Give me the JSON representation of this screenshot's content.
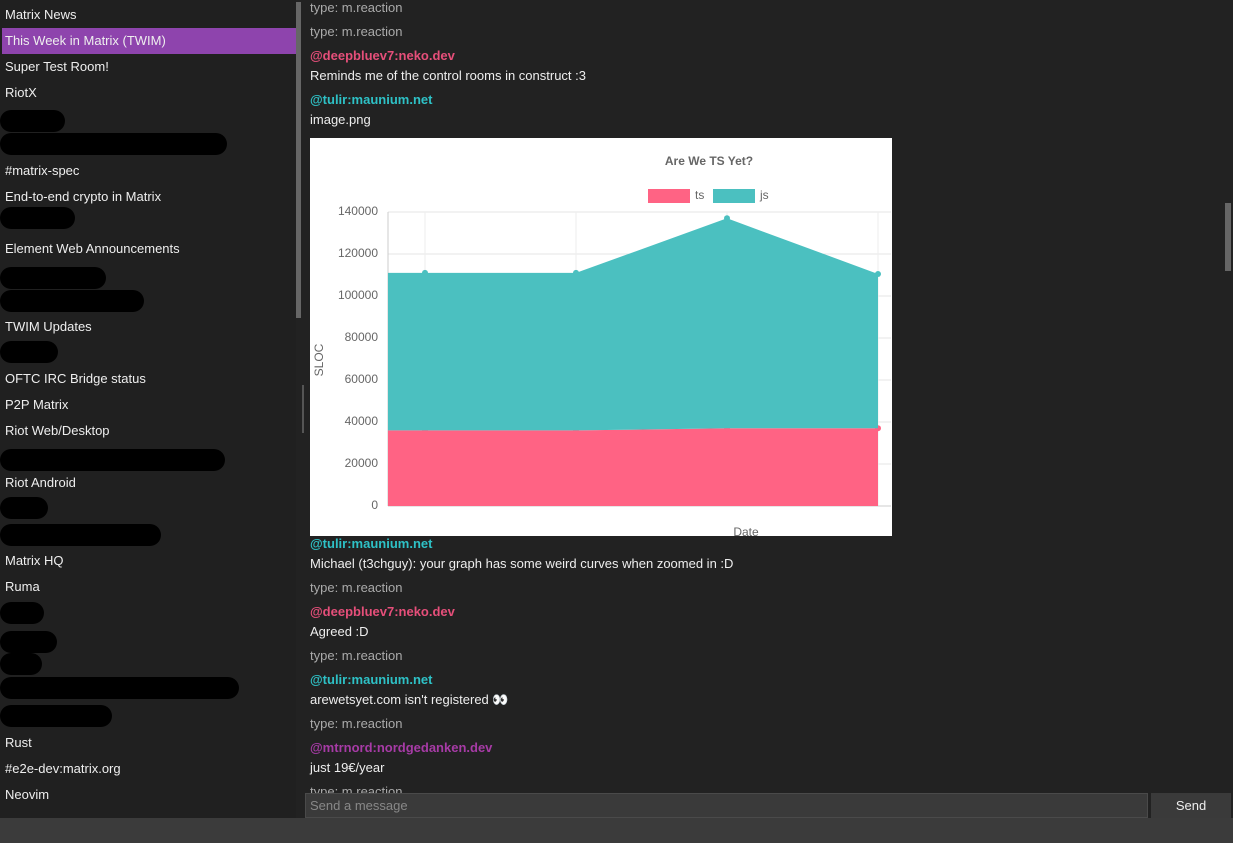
{
  "rooms": [
    "Matrix News",
    "This Week in Matrix (TWIM)",
    "Super Test Room!",
    "RiotX",
    "#matrix-spec",
    "End-to-end crypto in Matrix",
    "Element Web Announcements",
    "TWIM Updates",
    "OFTC IRC Bridge status",
    "P2P Matrix",
    "Riot Web/Desktop",
    "Riot Android",
    "Matrix HQ",
    "Ruma",
    "Rust",
    "#e2e-dev:matrix.org",
    "Neovim"
  ],
  "selected_room": 1,
  "timeline": [
    {
      "text": "type: m.reaction"
    },
    {
      "text": "type: m.reaction"
    },
    {
      "sender": "@deepbluev7:neko.dev",
      "color": "#e64f7a",
      "body": "Reminds me of the control rooms in construct :3"
    },
    {
      "sender": "@tulir:maunium.net",
      "color": "#2ec1c6",
      "body": "image.png"
    },
    {
      "sender": "@tulir:maunium.net",
      "color": "#2ec1c6",
      "body": "Michael (t3chguy): your graph has some weird curves when zoomed in :D"
    },
    {
      "text": "type: m.reaction"
    },
    {
      "sender": "@deepbluev7:neko.dev",
      "color": "#e64f7a",
      "body": "Agreed :D"
    },
    {
      "text": "type: m.reaction"
    },
    {
      "sender": "@tulir:maunium.net",
      "color": "#2ec1c6",
      "body": "arewetsyet.com isn't registered 👀"
    },
    {
      "text": "type: m.reaction"
    },
    {
      "sender": "@mtrnord:nordgedanken.dev",
      "color": "#a73ba6",
      "body": "just 19€/year"
    },
    {
      "text": "type: m.reaction"
    }
  ],
  "composer": {
    "placeholder": "Send a message",
    "button": "Send"
  },
  "chart_data": {
    "type": "area",
    "title": "Are We TS Yet?",
    "x_label": "Date",
    "y_label": "SLOC",
    "stacked": true,
    "categories": [
      null,
      null,
      null,
      null
    ],
    "series": [
      {
        "name": "ts",
        "color": "#ff6384",
        "values": [
          36000,
          36000,
          37000,
          37000
        ]
      },
      {
        "name": "js",
        "color": "#4bc0c0",
        "values": [
          75000,
          75000,
          100000,
          73500
        ]
      }
    ],
    "ylim": [
      0,
      140000
    ],
    "yticks": [
      0,
      20000,
      40000,
      60000,
      80000,
      100000,
      120000,
      140000
    ],
    "grid": true
  }
}
